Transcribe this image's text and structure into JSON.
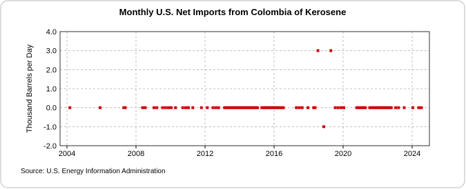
{
  "chart_data": {
    "type": "scatter",
    "title": "Monthly U.S. Net Imports from Colombia of Kerosene",
    "y_label": "Thousand Barrels per Day",
    "source": "Source: U.S. Energy Information Administration",
    "xlim": [
      2003.6,
      2025.0
    ],
    "xticks": [
      2004,
      2008,
      2012,
      2016,
      2020,
      2024
    ],
    "ylim": [
      -2.0,
      4.0
    ],
    "yticks": [
      {
        "value": -2,
        "label": "-2.0"
      },
      {
        "value": -1,
        "label": "-1.0"
      },
      {
        "value": 0,
        "label": "0.0"
      },
      {
        "value": 1,
        "label": "1.0"
      },
      {
        "value": 2,
        "label": "2.0"
      },
      {
        "value": 3,
        "label": "3.0"
      },
      {
        "value": 4,
        "label": "4.0"
      }
    ],
    "grid": true,
    "color": "#cc0000",
    "x": [
      2004.17,
      2005.92,
      2007.29,
      2007.38,
      2008.38,
      2008.54,
      2009.04,
      2009.21,
      2009.54,
      2009.71,
      2009.88,
      2010.04,
      2010.29,
      2010.71,
      2010.88,
      2011.04,
      2011.29,
      2011.79,
      2012.13,
      2012.46,
      2012.63,
      2012.79,
      2013.13,
      2013.21,
      2013.29,
      2013.38,
      2013.46,
      2013.54,
      2013.63,
      2013.71,
      2013.79,
      2013.88,
      2013.96,
      2014.04,
      2014.13,
      2014.21,
      2014.29,
      2014.38,
      2014.46,
      2014.54,
      2014.63,
      2014.71,
      2014.79,
      2014.88,
      2014.96,
      2015.04,
      2015.29,
      2015.38,
      2015.46,
      2015.54,
      2015.63,
      2015.71,
      2015.79,
      2015.88,
      2015.96,
      2016.04,
      2016.13,
      2016.21,
      2016.29,
      2016.38,
      2016.46,
      2016.54,
      2017.29,
      2017.46,
      2017.63,
      2017.96,
      2018.29,
      2018.38,
      2018.54,
      2018.88,
      2019.29,
      2019.54,
      2019.71,
      2019.88,
      2020.04,
      2020.79,
      2020.88,
      2020.96,
      2021.04,
      2021.13,
      2021.21,
      2021.29,
      2021.54,
      2021.63,
      2021.71,
      2021.79,
      2021.88,
      2021.96,
      2022.04,
      2022.13,
      2022.21,
      2022.29,
      2022.38,
      2022.46,
      2022.54,
      2022.63,
      2022.71,
      2022.79,
      2023.04,
      2023.21,
      2023.54,
      2024.04,
      2024.38,
      2024.54
    ],
    "values": [
      0,
      0,
      0,
      0,
      0,
      0,
      0,
      0,
      0,
      0,
      0,
      0,
      0,
      0,
      0,
      0,
      0,
      0,
      0,
      0,
      0,
      0,
      0,
      0,
      0,
      0,
      0,
      0,
      0,
      0,
      0,
      0,
      0,
      0,
      0,
      0,
      0,
      0,
      0,
      0,
      0,
      0,
      0,
      0,
      0,
      0,
      0,
      0,
      0,
      0,
      0,
      0,
      0,
      0,
      0,
      0,
      0,
      0,
      0,
      0,
      0,
      0,
      0,
      0,
      0,
      0,
      0,
      0,
      3,
      -1,
      3,
      0,
      0,
      0,
      0,
      0,
      0,
      0,
      0,
      0,
      0,
      0,
      0,
      0,
      0,
      0,
      0,
      0,
      0,
      0,
      0,
      0,
      0,
      0,
      0,
      0,
      0,
      0,
      0,
      0,
      0,
      0,
      0,
      0
    ]
  }
}
